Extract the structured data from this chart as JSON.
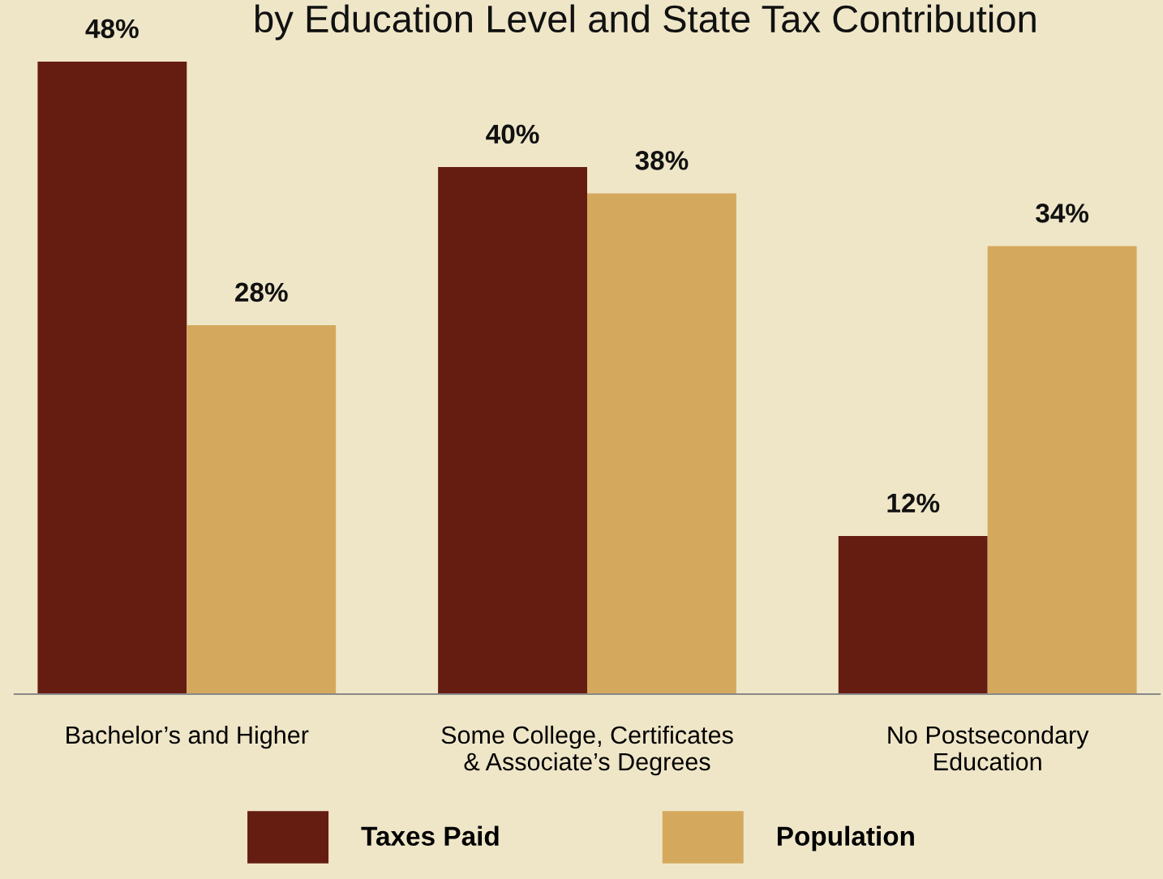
{
  "chart_data": {
    "type": "bar",
    "title": "by Education Level and State Tax Contribution",
    "categories": [
      "Bachelor’s and Higher",
      "Some College, Certificates\n& Associate’s Degrees",
      "No Postsecondary\nEducation"
    ],
    "series": [
      {
        "name": "Taxes Paid",
        "color": "#651d12",
        "values": [
          48,
          40,
          12
        ],
        "value_labels": [
          "48%",
          "40%",
          "12%"
        ]
      },
      {
        "name": "Population",
        "color": "#d4a95d",
        "values": [
          28,
          38,
          34
        ],
        "value_labels": [
          "28%",
          "38%",
          "34%"
        ]
      }
    ],
    "legend": "bottom",
    "grid": false
  }
}
